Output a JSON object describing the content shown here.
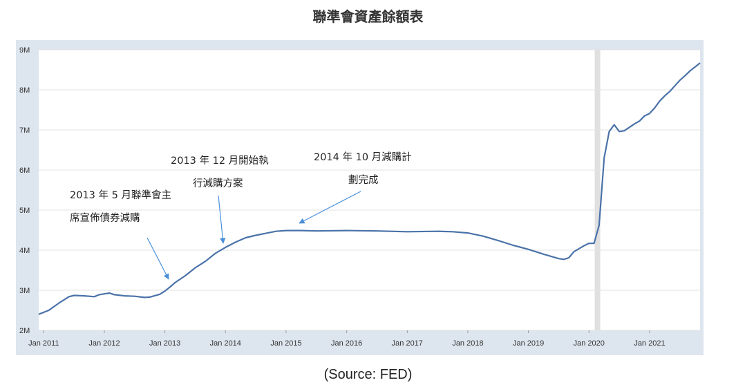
{
  "title": "聯準會資產餘額表",
  "source": "(Source: FED)",
  "chart_data": {
    "type": "line",
    "title": "聯準會資產餘額表",
    "xlabel": "",
    "ylabel": "",
    "ylim": [
      2,
      9
    ],
    "y_unit": "M",
    "y_ticks": [
      "2M",
      "3M",
      "4M",
      "5M",
      "6M",
      "7M",
      "8M",
      "9M"
    ],
    "x_ticks": [
      "Jan 2011",
      "Jan 2012",
      "Jan 2013",
      "Jan 2014",
      "Jan 2015",
      "Jan 2016",
      "Jan 2017",
      "Jan 2018",
      "Jan 2019",
      "Jan 2020",
      "Jan 2021"
    ],
    "grid": true,
    "line_color": "#4a72a9",
    "background_color": "#dde5ee",
    "shaded_region": {
      "from": "2020-02",
      "to": "2020-04",
      "color": "#e0e0e0"
    },
    "series": [
      {
        "points": [
          [
            "2010-12",
            2.4
          ],
          [
            "2011-02",
            2.5
          ],
          [
            "2011-04",
            2.68
          ],
          [
            "2011-06",
            2.84
          ],
          [
            "2011-07",
            2.87
          ],
          [
            "2011-09",
            2.86
          ],
          [
            "2011-11",
            2.84
          ],
          [
            "2011-12",
            2.89
          ],
          [
            "2012-01",
            2.91
          ],
          [
            "2012-02",
            2.93
          ],
          [
            "2012-03",
            2.89
          ],
          [
            "2012-05",
            2.86
          ],
          [
            "2012-07",
            2.85
          ],
          [
            "2012-09",
            2.82
          ],
          [
            "2012-10",
            2.83
          ],
          [
            "2012-12",
            2.9
          ],
          [
            "2013-01",
            2.98
          ],
          [
            "2013-02",
            3.08
          ],
          [
            "2013-03",
            3.19
          ],
          [
            "2013-05",
            3.36
          ],
          [
            "2013-07",
            3.56
          ],
          [
            "2013-09",
            3.72
          ],
          [
            "2013-11",
            3.92
          ],
          [
            "2014-01",
            4.07
          ],
          [
            "2014-03",
            4.2
          ],
          [
            "2014-05",
            4.31
          ],
          [
            "2014-07",
            4.37
          ],
          [
            "2014-09",
            4.42
          ],
          [
            "2014-11",
            4.47
          ],
          [
            "2015-01",
            4.49
          ],
          [
            "2015-04",
            4.49
          ],
          [
            "2015-07",
            4.48
          ],
          [
            "2016-01",
            4.49
          ],
          [
            "2016-07",
            4.48
          ],
          [
            "2017-01",
            4.46
          ],
          [
            "2017-07",
            4.47
          ],
          [
            "2017-10",
            4.46
          ],
          [
            "2018-01",
            4.43
          ],
          [
            "2018-04",
            4.35
          ],
          [
            "2018-07",
            4.24
          ],
          [
            "2018-10",
            4.12
          ],
          [
            "2019-01",
            4.02
          ],
          [
            "2019-04",
            3.9
          ],
          [
            "2019-07",
            3.79
          ],
          [
            "2019-08",
            3.77
          ],
          [
            "2019-09",
            3.81
          ],
          [
            "2019-10",
            3.96
          ],
          [
            "2019-12",
            4.11
          ],
          [
            "2020-01",
            4.17
          ],
          [
            "2020-02",
            4.17
          ],
          [
            "2020-03",
            4.62
          ],
          [
            "2020-04",
            6.3
          ],
          [
            "2020-05",
            6.96
          ],
          [
            "2020-06",
            7.13
          ],
          [
            "2020-07",
            6.96
          ],
          [
            "2020-08",
            6.98
          ],
          [
            "2020-10",
            7.15
          ],
          [
            "2020-11",
            7.22
          ],
          [
            "2020-12",
            7.35
          ],
          [
            "2021-01",
            7.41
          ],
          [
            "2021-02",
            7.55
          ],
          [
            "2021-03",
            7.72
          ],
          [
            "2021-04",
            7.85
          ],
          [
            "2021-05",
            7.96
          ],
          [
            "2021-06",
            8.1
          ],
          [
            "2021-07",
            8.24
          ],
          [
            "2021-08",
            8.35
          ],
          [
            "2021-09",
            8.47
          ],
          [
            "2021-10",
            8.57
          ],
          [
            "2021-11",
            8.67
          ]
        ]
      }
    ],
    "annotations": [
      {
        "lines": [
          "2013 年 5 月聯準會主",
          "席宣佈債券減購"
        ],
        "arrow_to": "2013-01"
      },
      {
        "lines": [
          "2013 年 12 月開始執",
          "行減購方案"
        ],
        "arrow_to": "2013-12"
      },
      {
        "lines": [
          "2014 年 10 月減購計",
          "劃完成"
        ],
        "arrow_to": "2015-03"
      }
    ]
  }
}
